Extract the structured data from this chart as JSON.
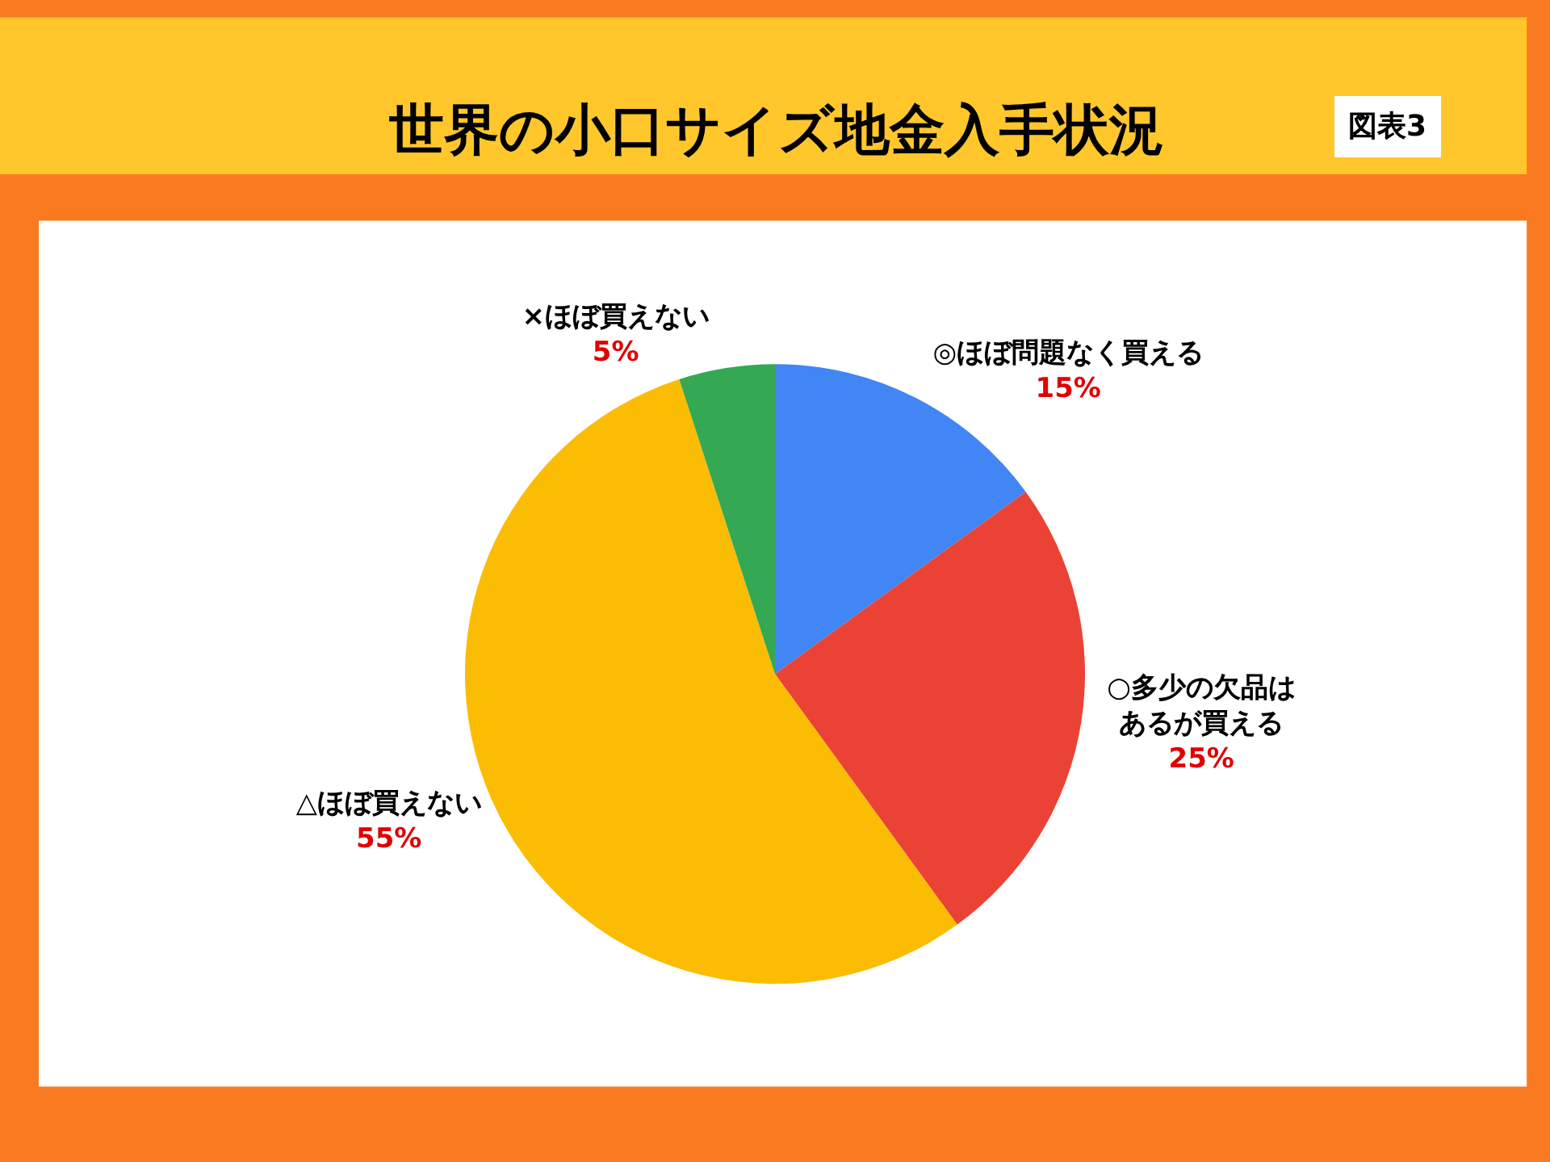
{
  "chart_data": {
    "type": "pie",
    "title": "世界の小口サイズ地金入手状況",
    "annotations": [
      "図表3"
    ],
    "categories": [
      "◎ほぼ問題なく買える",
      "○多少の欠品はあるが買える",
      "△ほぼ買えない",
      "×ほぼ買えない"
    ],
    "values": [
      15,
      25,
      55,
      5
    ],
    "value_labels": [
      "15%",
      "25%",
      "55%",
      "5%"
    ],
    "colors": [
      "#4285f4",
      "#ea4335",
      "#fbbc04",
      "#34a853"
    ],
    "legend": false
  }
}
